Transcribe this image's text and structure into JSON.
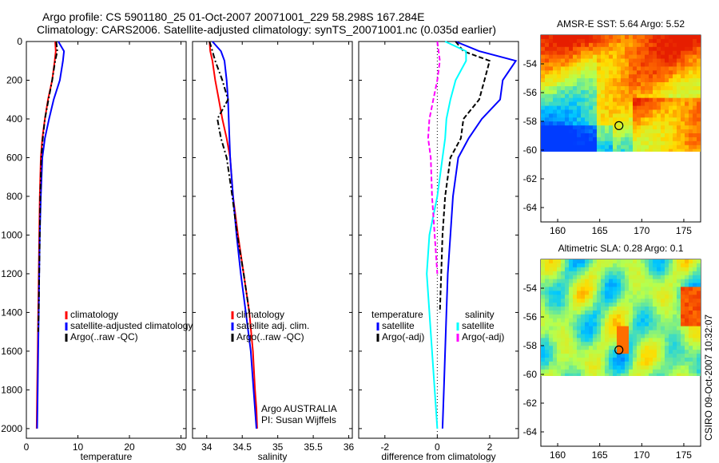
{
  "header": {
    "line1": "Argo profile: CS 5901180_25 01-Oct-2007 20071001_229 58.298S 167.284E",
    "line2": "Climatology: CARS2006. Satellite-adjusted climatology: synTS_20071001.nc (0.035d earlier)"
  },
  "footer": {
    "stamp": "CSIRO 09-Oct-2007 10:32:07"
  },
  "colors": {
    "climatology": "#ff0000",
    "satellite": "#0000ff",
    "argo": "#000000",
    "sat_diff_salinity": "#00ffff",
    "argo_diff_salinity": "#ff00ff"
  },
  "chart_data": [
    {
      "type": "line",
      "xlabel": "temperature",
      "xlim": [
        0,
        31
      ],
      "ylim": [
        2050,
        0
      ],
      "xticks": [
        0,
        10,
        20,
        30
      ],
      "yticks": [
        0,
        200,
        400,
        600,
        800,
        1000,
        1200,
        1400,
        1600,
        1800,
        2000
      ],
      "legend": {
        "placement": "lower-right",
        "entries": [
          "climatology",
          "satellite-adjusted climatology",
          "Argo(..raw -QC)"
        ]
      },
      "series": [
        {
          "name": "climatology",
          "style": "solid",
          "color": "#ff0000",
          "x": [
            5.6,
            5.7,
            5.5,
            5.0,
            4.2,
            3.6,
            3.1,
            2.8,
            2.6,
            2.5,
            2.4,
            2.3,
            2.2,
            2.1,
            2.0
          ],
          "y": [
            0,
            50,
            100,
            200,
            300,
            400,
            500,
            600,
            800,
            1000,
            1200,
            1400,
            1600,
            1800,
            2000
          ]
        },
        {
          "name": "satellite-adjusted climatology",
          "style": "solid",
          "color": "#0000ff",
          "x": [
            6.2,
            7.3,
            7.1,
            6.5,
            5.3,
            4.4,
            3.6,
            3.1,
            2.8,
            2.6,
            2.5,
            2.4,
            2.3,
            2.2,
            2.1
          ],
          "y": [
            0,
            50,
            100,
            200,
            300,
            400,
            500,
            600,
            800,
            1000,
            1200,
            1400,
            1600,
            1800,
            2000
          ]
        },
        {
          "name": "Argo(..raw -QC)",
          "style": "dash-dot",
          "color": "#000000",
          "x": [
            5.8,
            6.0,
            5.6,
            5.0,
            4.3,
            3.6,
            3.2,
            2.9,
            2.7,
            2.6,
            2.5,
            2.4,
            2.3
          ],
          "y": [
            0,
            50,
            100,
            200,
            300,
            400,
            500,
            600,
            800,
            1000,
            1200,
            1400,
            1500
          ]
        }
      ]
    },
    {
      "type": "line",
      "xlabel": "salinity",
      "xlim": [
        33.8,
        36.05
      ],
      "ylim": [
        2050,
        0
      ],
      "xticks": [
        34,
        34.5,
        35,
        35.5,
        36
      ],
      "legend": {
        "placement": "lower-right",
        "entries": [
          "climatology",
          "satellite adj. clim.",
          "Argo(..raw -QC)"
        ]
      },
      "annotation": [
        "Argo AUSTRALIA",
        "PI: Susan Wijffels"
      ],
      "series": [
        {
          "name": "climatology",
          "style": "solid",
          "color": "#ff0000",
          "x": [
            34.04,
            34.05,
            34.08,
            34.12,
            34.17,
            34.22,
            34.28,
            34.33,
            34.37,
            34.44,
            34.52,
            34.6,
            34.65,
            34.68,
            34.7,
            34.71
          ],
          "y": [
            0,
            50,
            100,
            200,
            300,
            400,
            500,
            600,
            800,
            1000,
            1200,
            1400,
            1600,
            1800,
            1900,
            2000
          ]
        },
        {
          "name": "satellite adj. clim.",
          "style": "solid",
          "color": "#0000ff",
          "x": [
            34.08,
            34.2,
            34.25,
            34.28,
            34.3,
            34.31,
            34.32,
            34.33,
            34.37,
            34.42,
            34.48,
            34.55,
            34.62,
            34.66,
            34.68,
            34.7
          ],
          "y": [
            0,
            50,
            100,
            200,
            300,
            400,
            500,
            600,
            800,
            1000,
            1200,
            1400,
            1600,
            1800,
            1900,
            2000
          ]
        },
        {
          "name": "Argo(..raw -QC)",
          "style": "dash-dot",
          "color": "#000000",
          "x": [
            34.04,
            34.08,
            34.12,
            34.22,
            34.3,
            34.15,
            34.2,
            34.28,
            34.36,
            34.43,
            34.52,
            34.6
          ],
          "y": [
            0,
            50,
            100,
            200,
            300,
            400,
            500,
            600,
            800,
            1000,
            1200,
            1400
          ]
        }
      ]
    },
    {
      "type": "line",
      "xlabel": "difference from climatology",
      "xlim": [
        -3.0,
        3.1
      ],
      "ylim": [
        2050,
        0
      ],
      "xticks": [
        -2,
        0,
        2
      ],
      "legend": {
        "placement": "lower",
        "groups": [
          {
            "heading": "temperature",
            "entries": [
              "satellite",
              "Argo(-adj)"
            ]
          },
          {
            "heading": "salinity",
            "entries": [
              "satellite",
              "Argo(-adj)"
            ]
          }
        ]
      },
      "series": [
        {
          "name": "temperature satellite",
          "style": "solid",
          "color": "#0000ff",
          "x": [
            0.7,
            1.6,
            3.0,
            2.5,
            2.4,
            1.7,
            1.2,
            0.8,
            0.6,
            0.5,
            0.4,
            0.35,
            0.3,
            0.25,
            0.2
          ],
          "y": [
            0,
            50,
            100,
            200,
            300,
            400,
            500,
            600,
            800,
            1000,
            1200,
            1400,
            1600,
            1800,
            2000
          ]
        },
        {
          "name": "temperature Argo(-adj)",
          "style": "dashed",
          "color": "#000000",
          "x": [
            0.7,
            1.0,
            2.0,
            1.8,
            1.6,
            1.0,
            0.9,
            0.5,
            0.3,
            0.2,
            0.15,
            0.1
          ],
          "y": [
            0,
            50,
            100,
            200,
            300,
            400,
            500,
            600,
            800,
            1000,
            1200,
            1400
          ]
        },
        {
          "name": "salinity satellite",
          "style": "solid",
          "color": "#00ffff",
          "x": [
            0.3,
            1.1,
            1.1,
            0.7,
            0.5,
            0.35,
            0.3,
            0.2,
            0.0,
            -0.3,
            -0.4,
            -0.3,
            -0.2,
            -0.1,
            0.0
          ],
          "y": [
            0,
            50,
            100,
            200,
            300,
            400,
            500,
            600,
            800,
            1000,
            1200,
            1400,
            1600,
            1800,
            2000
          ]
        },
        {
          "name": "salinity Argo(-adj)",
          "style": "dashed",
          "color": "#ff00ff",
          "x": [
            0.0,
            0.05,
            0.1,
            0.0,
            -0.15,
            -0.3,
            -0.35,
            -0.25,
            -0.2,
            -0.1,
            0.0
          ],
          "y": [
            0,
            50,
            100,
            200,
            300,
            400,
            500,
            600,
            800,
            1000,
            1200
          ]
        }
      ]
    },
    {
      "type": "heatmap",
      "title": "AMSR-E SST: 5.64 Argo: 5.52",
      "xlim": [
        158,
        177
      ],
      "ylim": [
        -65,
        -52
      ],
      "xticks": [
        160,
        165,
        170,
        175
      ],
      "yticks": [
        -54,
        -56,
        -58,
        -60,
        -62,
        -64
      ],
      "data_extent_lat": [
        -60.2,
        -52
      ],
      "marker": {
        "lon": 167.284,
        "lat": -58.298
      }
    },
    {
      "type": "heatmap",
      "title": "Altimetric SLA: 0.28 Argo: 0.1",
      "xlim": [
        158,
        177
      ],
      "ylim": [
        -65,
        -52
      ],
      "xticks": [
        160,
        165,
        170,
        175
      ],
      "yticks": [
        -54,
        -56,
        -58,
        -60,
        -62,
        -64
      ],
      "data_extent_lat": [
        -60.2,
        -52
      ],
      "marker": {
        "lon": 167.284,
        "lat": -58.298
      }
    }
  ]
}
